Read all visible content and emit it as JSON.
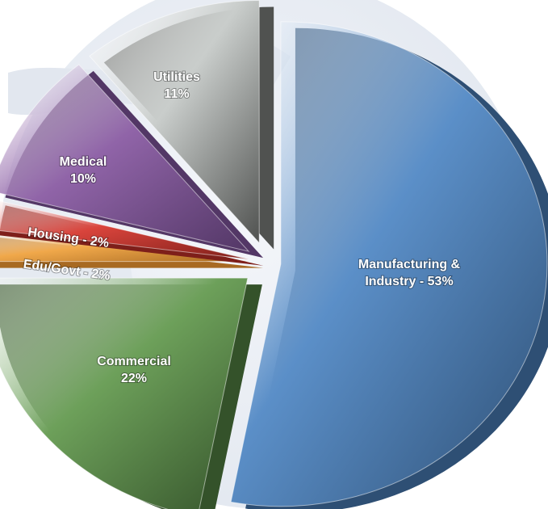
{
  "chart_data": {
    "type": "pie",
    "style": "3d-exploded",
    "slices": [
      {
        "label": "Manufacturing & Industry",
        "value": 53,
        "display": [
          "Manufacturing &",
          "Industry - 53%"
        ],
        "color": "#5b8fc8",
        "dark": "#2e4f74"
      },
      {
        "label": "Commercial",
        "value": 22,
        "display": [
          "Commercial",
          "22%"
        ],
        "color": "#6da05a",
        "dark": "#34522a"
      },
      {
        "label": "Edu/Govt",
        "value": 2,
        "display": [
          "Edu/Govt - 2%"
        ],
        "color": "#f0a84a",
        "dark": "#a86a22"
      },
      {
        "label": "Housing",
        "value": 2,
        "display": [
          "Housing - 2%"
        ],
        "color": "#d9443c",
        "dark": "#7e1f1a"
      },
      {
        "label": "Medical",
        "value": 10,
        "display": [
          "Medical",
          "10%"
        ],
        "color": "#9064a8",
        "dark": "#533766"
      },
      {
        "label": "Utilities",
        "value": 11,
        "display": [
          "Utilities",
          "11%"
        ],
        "color": "#c9cdcb",
        "dark": "#505250"
      }
    ]
  }
}
